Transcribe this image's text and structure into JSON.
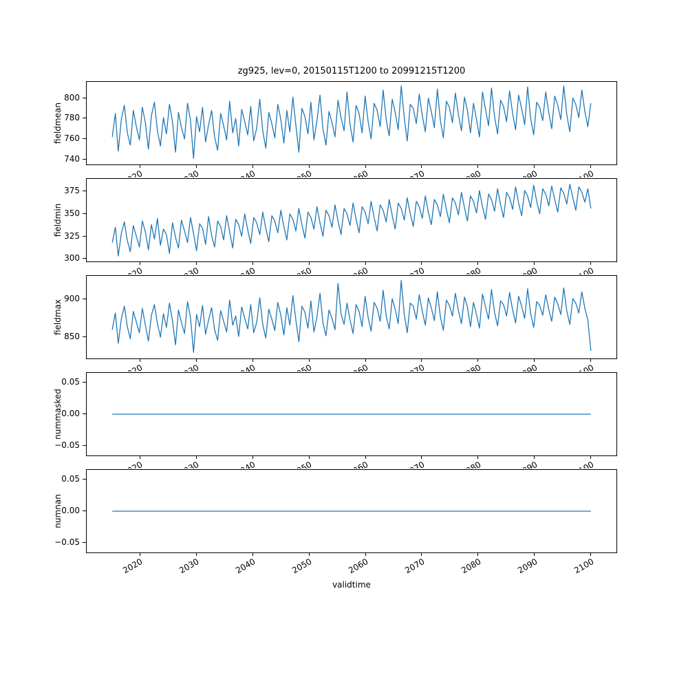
{
  "figure": {
    "title": "zg925, lev=0, 20150115T1200 to 20991215T1200",
    "line_color": "#1f77b4",
    "background": "#ffffff"
  },
  "x_axis": {
    "label": "validtime",
    "xlim": [
      2010.5,
      2104.5
    ],
    "tick_vals": [
      2020,
      2030,
      2040,
      2050,
      2060,
      2070,
      2080,
      2090,
      2100
    ],
    "tick_labels": [
      "2020",
      "2030",
      "2040",
      "2050",
      "2060",
      "2070",
      "2080",
      "2090",
      "2100"
    ]
  },
  "chart_data": [
    {
      "type": "line",
      "name": "fieldmean",
      "ylabel": "fieldmean",
      "x_start": 2015.04,
      "x_end": 2099.96,
      "ylim": [
        735,
        816
      ],
      "ytick_vals": [
        740,
        760,
        780,
        800
      ],
      "ytick_labels": [
        "740",
        "760",
        "780",
        "800"
      ],
      "values": [
        762,
        785,
        748,
        779,
        793,
        766,
        754,
        788,
        772,
        759,
        791,
        776,
        750,
        783,
        796,
        768,
        753,
        781,
        765,
        794,
        777,
        747,
        786,
        771,
        760,
        795,
        778,
        741,
        782,
        767,
        791,
        757,
        774,
        788,
        762,
        749,
        785,
        773,
        759,
        797,
        766,
        780,
        753,
        789,
        777,
        764,
        792,
        758,
        771,
        799,
        768,
        751,
        786,
        775,
        761,
        794,
        779,
        756,
        788,
        767,
        801,
        773,
        747,
        790,
        782,
        765,
        796,
        759,
        778,
        803,
        770,
        754,
        787,
        776,
        762,
        798,
        781,
        768,
        806,
        774,
        757,
        793,
        785,
        766,
        802,
        777,
        760,
        795,
        788,
        772,
        808,
        779,
        763,
        799,
        786,
        769,
        812,
        781,
        758,
        794,
        790,
        775,
        804,
        783,
        767,
        800,
        787,
        771,
        809,
        778,
        761,
        797,
        791,
        776,
        805,
        784,
        768,
        801,
        788,
        766,
        795,
        779,
        762,
        806,
        789,
        773,
        810,
        782,
        765,
        798,
        792,
        777,
        807,
        785,
        769,
        803,
        790,
        774,
        811,
        780,
        764,
        796,
        791,
        778,
        806,
        786,
        770,
        802,
        793,
        779,
        812,
        784,
        767,
        800,
        794,
        781,
        808,
        787,
        772,
        795
      ]
    },
    {
      "type": "line",
      "name": "fieldmin",
      "ylabel": "fieldmin",
      "x_start": 2015.04,
      "x_end": 2099.96,
      "ylim": [
        297,
        389
      ],
      "ytick_vals": [
        300,
        325,
        350,
        375
      ],
      "ytick_labels": [
        "300",
        "325",
        "350",
        "375"
      ],
      "values": [
        318,
        335,
        303,
        328,
        341,
        320,
        308,
        337,
        325,
        313,
        342,
        330,
        310,
        338,
        322,
        345,
        315,
        333,
        327,
        306,
        340,
        324,
        312,
        343,
        331,
        318,
        346,
        328,
        309,
        339,
        334,
        316,
        347,
        326,
        313,
        342,
        336,
        321,
        348,
        330,
        312,
        344,
        338,
        325,
        350,
        332,
        317,
        346,
        340,
        327,
        352,
        334,
        319,
        348,
        342,
        329,
        354,
        336,
        321,
        350,
        344,
        331,
        356,
        338,
        323,
        352,
        346,
        333,
        358,
        340,
        325,
        354,
        348,
        335,
        360,
        342,
        327,
        356,
        350,
        337,
        362,
        344,
        329,
        358,
        352,
        339,
        364,
        346,
        331,
        360,
        354,
        341,
        366,
        348,
        333,
        362,
        356,
        343,
        368,
        350,
        336,
        364,
        358,
        345,
        370,
        352,
        338,
        366,
        360,
        347,
        372,
        355,
        340,
        368,
        362,
        349,
        374,
        357,
        342,
        370,
        364,
        351,
        376,
        358,
        344,
        372,
        366,
        353,
        378,
        360,
        346,
        374,
        368,
        355,
        380,
        362,
        348,
        376,
        370,
        357,
        382,
        364,
        350,
        378,
        372,
        359,
        381,
        366,
        352,
        379,
        373,
        361,
        383,
        368,
        354,
        380,
        374,
        363,
        378,
        356
      ]
    },
    {
      "type": "line",
      "name": "fieldmax",
      "ylabel": "fieldmax",
      "x_start": 2015.04,
      "x_end": 2099.96,
      "ylim": [
        822,
        931
      ],
      "ytick_vals": [
        850,
        900
      ],
      "ytick_labels": [
        "850",
        "900"
      ],
      "values": [
        860,
        882,
        842,
        874,
        891,
        864,
        848,
        884,
        870,
        856,
        888,
        866,
        845,
        879,
        893,
        868,
        850,
        881,
        863,
        895,
        872,
        840,
        886,
        869,
        855,
        897,
        876,
        830,
        880,
        864,
        892,
        854,
        873,
        889,
        860,
        846,
        885,
        871,
        857,
        899,
        866,
        878,
        851,
        890,
        875,
        861,
        893,
        856,
        870,
        902,
        867,
        849,
        887,
        874,
        859,
        896,
        879,
        853,
        889,
        866,
        905,
        872,
        844,
        891,
        883,
        862,
        898,
        857,
        877,
        908,
        869,
        852,
        886,
        875,
        860,
        921,
        881,
        867,
        895,
        873,
        855,
        893,
        884,
        864,
        904,
        876,
        858,
        896,
        888,
        871,
        912,
        878,
        861,
        901,
        887,
        868,
        925,
        880,
        856,
        895,
        891,
        874,
        906,
        884,
        866,
        902,
        889,
        872,
        910,
        877,
        859,
        899,
        892,
        878,
        908,
        885,
        868,
        903,
        890,
        864,
        896,
        880,
        862,
        907,
        890,
        874,
        913,
        883,
        865,
        898,
        893,
        878,
        909,
        886,
        869,
        904,
        891,
        875,
        914,
        881,
        863,
        897,
        892,
        879,
        906,
        887,
        871,
        903,
        894,
        880,
        915,
        885,
        867,
        901,
        895,
        882,
        910,
        888,
        873,
        832
      ]
    },
    {
      "type": "line",
      "name": "nummasked",
      "ylabel": "nummasked",
      "x_start": 2015.04,
      "x_end": 2099.96,
      "ylim": [
        -0.065,
        0.065
      ],
      "ytick_vals": [
        0.05,
        0.0,
        -0.05
      ],
      "ytick_labels": [
        "0.05",
        "0.00",
        "−0.05"
      ],
      "values": [
        0,
        0
      ]
    },
    {
      "type": "line",
      "name": "numnan",
      "ylabel": "numnan",
      "x_start": 2015.04,
      "x_end": 2099.96,
      "ylim": [
        -0.065,
        0.065
      ],
      "ytick_vals": [
        0.05,
        0.0,
        -0.05
      ],
      "ytick_labels": [
        "0.05",
        "0.00",
        "−0.05"
      ],
      "values": [
        0,
        0
      ]
    }
  ]
}
